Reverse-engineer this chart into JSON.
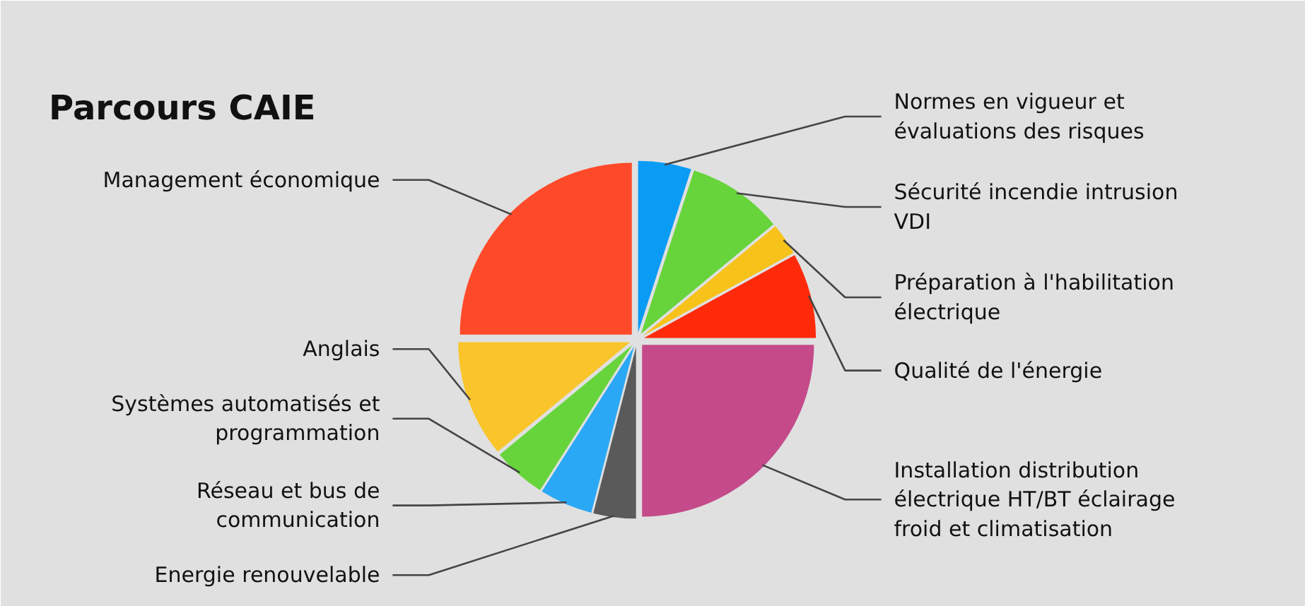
{
  "chart_data": {
    "type": "pie",
    "title": "Parcours CAIE",
    "categories": [
      "Normes en vigueur et évaluations des risques",
      "Sécurité incendie intrusion VDI",
      "Préparation à l'habilitation électrique",
      "Qualité de l'énergie",
      "Installation distribution électrique HT/BT éclairage froid et climatisation",
      "Energie renouvelable",
      "Réseau et bus de communication",
      "Systèmes automatisés et programmation",
      "Anglais",
      "Management économique"
    ],
    "values": [
      5,
      9,
      3,
      8,
      25,
      4,
      5,
      5,
      11,
      25
    ],
    "colors": [
      "#0a9cf5",
      "#66d43a",
      "#f7c21a",
      "#ff2a0a",
      "#c44a8a",
      "#5a5a5a",
      "#2aa8f5",
      "#66d43a",
      "#f9c52a",
      "#ff4a2a"
    ]
  }
}
